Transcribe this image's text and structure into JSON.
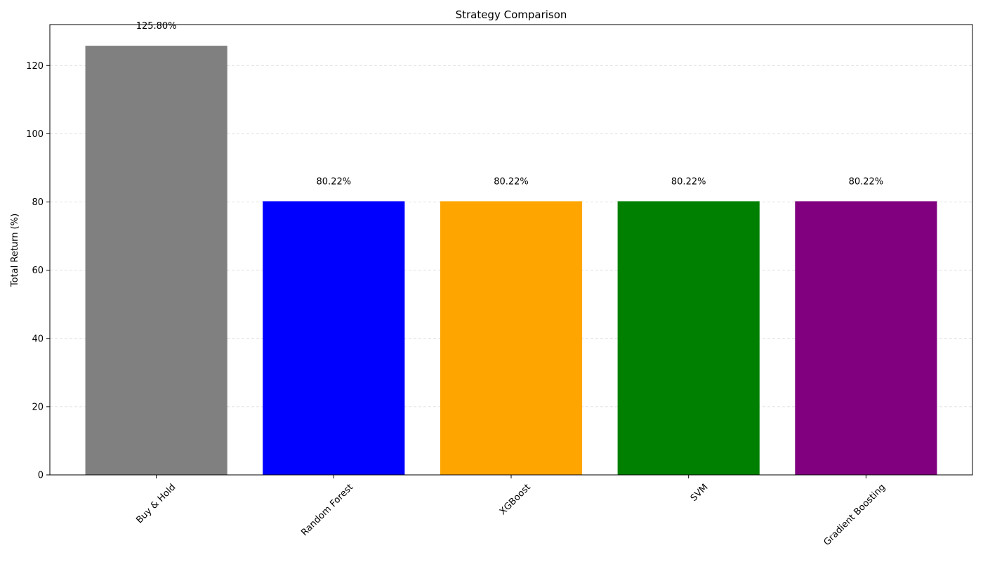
{
  "chart_data": {
    "type": "bar",
    "title": "Strategy Comparison",
    "xlabel": "",
    "ylabel": "Total Return (%)",
    "categories": [
      "Buy & Hold",
      "Random Forest",
      "XGBoost",
      "SVM",
      "Gradient Boosting"
    ],
    "values": [
      125.8,
      80.22,
      80.22,
      80.22,
      80.22
    ],
    "value_labels": [
      "125.80%",
      "80.22%",
      "80.22%",
      "80.22%",
      "80.22%"
    ],
    "colors": [
      "#808080",
      "#0000ff",
      "#ffa500",
      "#008000",
      "#800080"
    ],
    "ylim": [
      0,
      132
    ],
    "yticks": [
      0,
      20,
      40,
      60,
      80,
      100,
      120
    ],
    "grid": "y-dashed",
    "legend": "none"
  }
}
